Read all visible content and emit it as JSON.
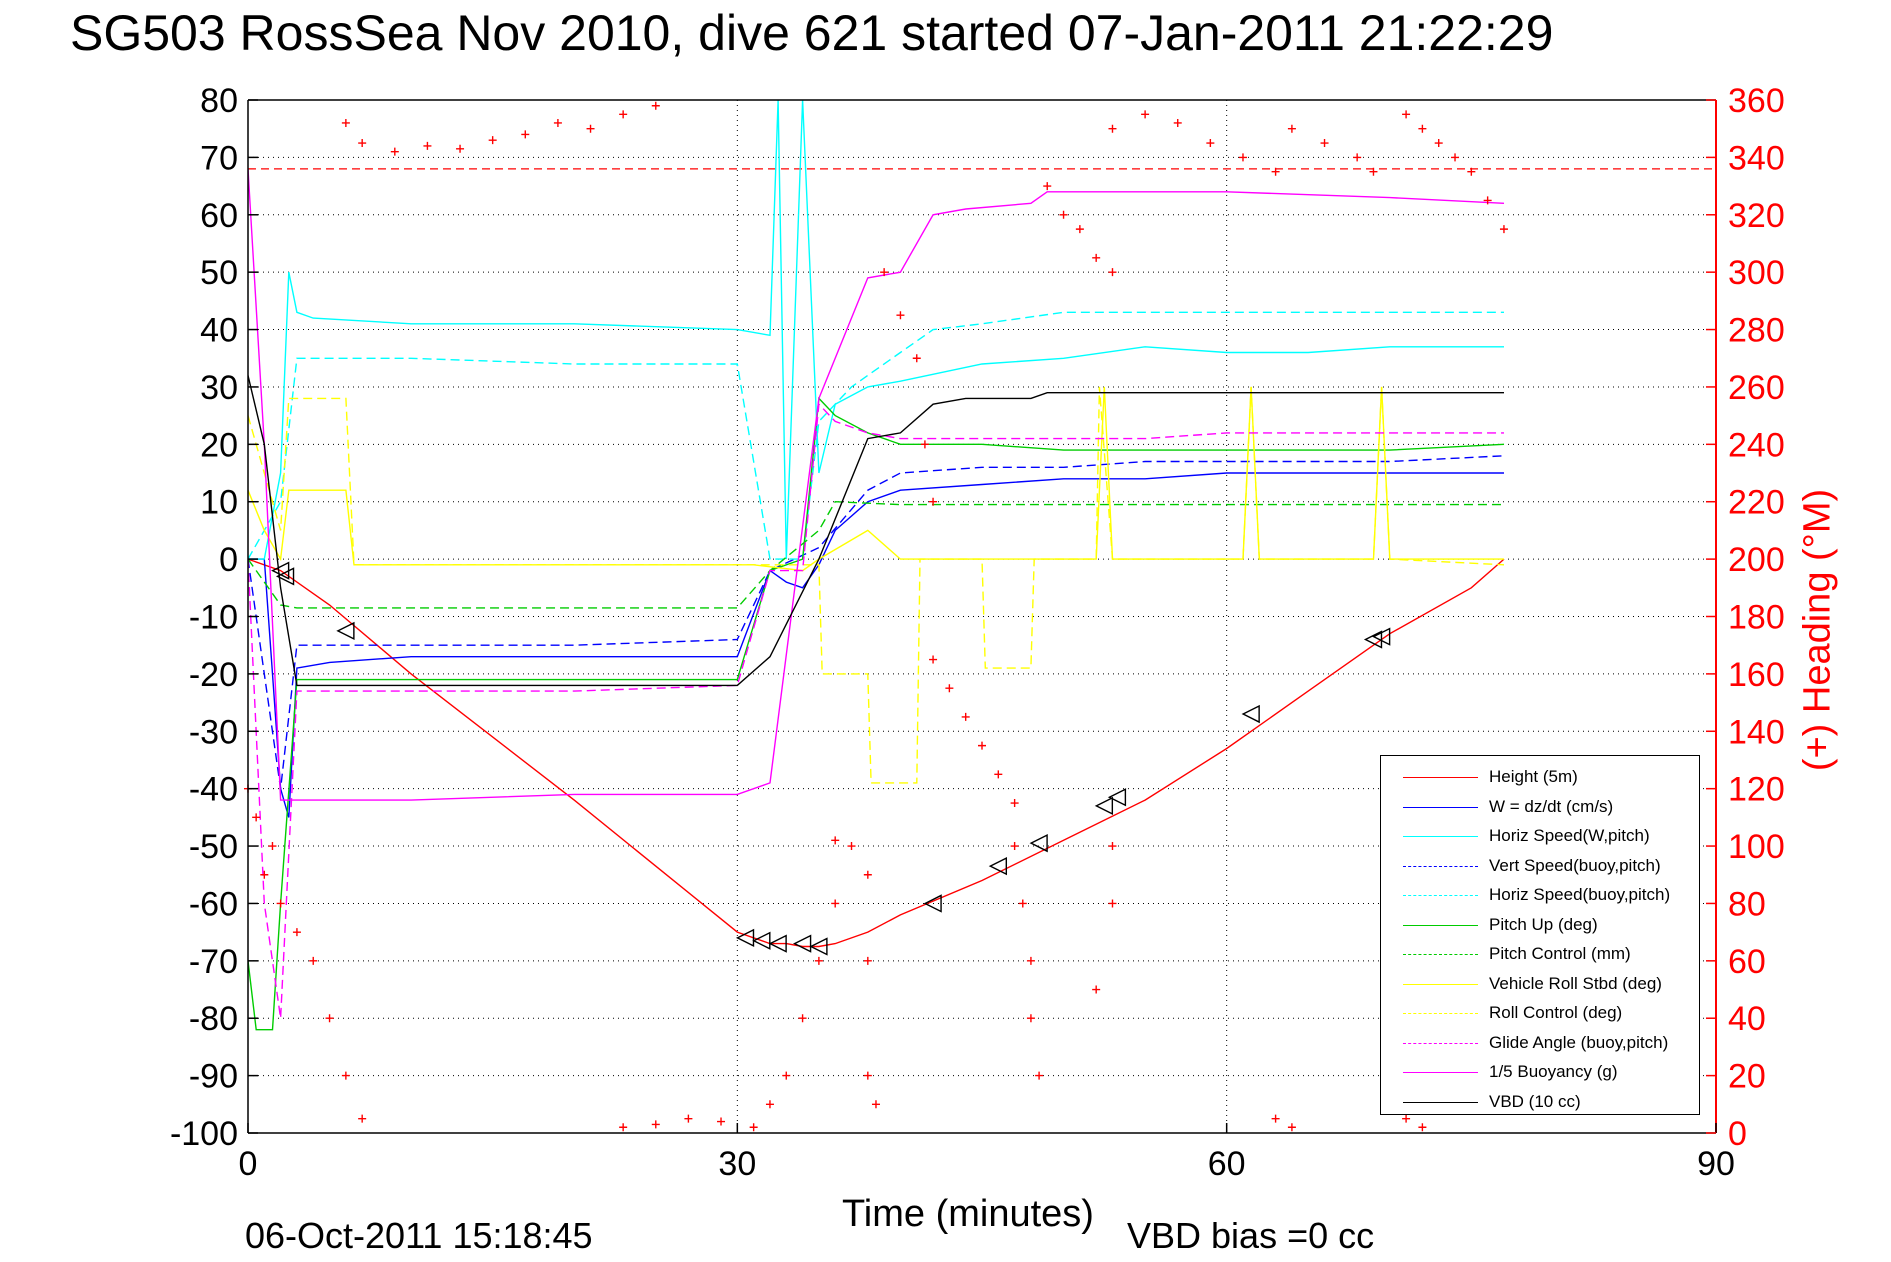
{
  "title": "SG503 RossSea Nov 2010, dive 621 started 07-Jan-2011 21:22:29",
  "footer": {
    "date": "06-Oct-2011 15:18:45",
    "bias": "VBD bias =0 cc"
  },
  "chart_data": {
    "type": "line",
    "xlabel": "Time (minutes)",
    "ylabel_right": "(+) Heading (°M)",
    "xlim": [
      0,
      90
    ],
    "ylim_left": [
      -100,
      80
    ],
    "ylim_right": [
      0,
      360
    ],
    "x_ticks": [
      "0",
      "30",
      "60",
      "90"
    ],
    "y_left_ticks": [
      "80",
      "70",
      "60",
      "50",
      "40",
      "30",
      "20",
      "10",
      "0",
      "-10",
      "-20",
      "-30",
      "-40",
      "-50",
      "-60",
      "-70",
      "-80",
      "-90",
      "-100"
    ],
    "y_right_ticks": [
      "360",
      "340",
      "320",
      "300",
      "280",
      "260",
      "240",
      "220",
      "200",
      "180",
      "160",
      "140",
      "120",
      "100",
      "80",
      "60",
      "40",
      "20",
      "0"
    ],
    "grid": true,
    "legend_position": "bottom-right",
    "series": [
      {
        "name": "Height (5m)",
        "color": "#ff0000",
        "style": "solid",
        "x": [
          0,
          2,
          5,
          10,
          20,
          30,
          32,
          33,
          34,
          35,
          36,
          37,
          38,
          40,
          45,
          50,
          55,
          60,
          65,
          70,
          75,
          77
        ],
        "y": [
          0,
          -2,
          -8,
          -20,
          -42,
          -65,
          -67,
          -67,
          -67.5,
          -67.5,
          -67,
          -66,
          -65,
          -62,
          -56,
          -49,
          -42,
          -33,
          -23,
          -13,
          -5,
          0
        ]
      },
      {
        "name": "W = dz/dt (cm/s)",
        "color": "#0000ff",
        "style": "solid",
        "x": [
          0,
          1,
          1.5,
          2,
          2.5,
          3,
          5,
          10,
          20,
          30,
          32,
          33,
          34,
          35,
          36,
          38,
          40,
          45,
          50,
          55,
          60,
          65,
          70,
          77
        ],
        "y": [
          0,
          0,
          -20,
          -40,
          -45,
          -19,
          -18,
          -17,
          -17,
          -17,
          -2,
          -4,
          -5,
          -1,
          5,
          10,
          12,
          13,
          14,
          14,
          15,
          15,
          15,
          15
        ]
      },
      {
        "name": "Horiz Speed(W,pitch)",
        "color": "#00ffff",
        "style": "solid",
        "x": [
          0,
          1,
          2,
          2.5,
          3,
          4,
          10,
          20,
          30,
          32,
          32.5,
          33,
          34,
          35,
          36,
          38,
          40,
          45,
          50,
          55,
          60,
          65,
          70,
          77
        ],
        "y": [
          0,
          0,
          15,
          50,
          43,
          42,
          41,
          41,
          40,
          39,
          80,
          0,
          80,
          15,
          27,
          30,
          31,
          34,
          35,
          37,
          36,
          36,
          37,
          37
        ]
      },
      {
        "name": "Vert Speed(buoy,pitch)",
        "color": "#0000ff",
        "style": "dashed",
        "x": [
          0,
          2,
          3,
          5,
          10,
          20,
          30,
          32,
          35,
          38,
          40,
          45,
          50,
          55,
          60,
          65,
          70,
          77
        ],
        "y": [
          0,
          -40,
          -15,
          -15,
          -15,
          -15,
          -14,
          -2,
          2,
          12,
          15,
          16,
          16,
          17,
          17,
          17,
          17,
          18
        ]
      },
      {
        "name": "Horiz Speed(buoy,pitch)",
        "color": "#00ffff",
        "style": "dashed",
        "x": [
          0,
          2,
          3,
          5,
          10,
          20,
          30,
          32,
          34,
          35,
          37,
          40,
          42,
          45,
          50,
          55,
          60,
          65,
          70,
          77
        ],
        "y": [
          0,
          10,
          35,
          35,
          35,
          34,
          34,
          0,
          0,
          24,
          30,
          36,
          40,
          41,
          43,
          43,
          43,
          43,
          43,
          43
        ]
      },
      {
        "name": "Pitch Up (deg)",
        "color": "#00cc00",
        "style": "solid",
        "x": [
          0,
          0.5,
          1.5,
          2,
          3,
          5,
          10,
          20,
          30,
          32,
          34,
          35,
          36,
          38,
          40,
          45,
          50,
          55,
          60,
          65,
          70,
          77
        ],
        "y": [
          -70,
          -82,
          -82,
          -60,
          -21,
          -21,
          -21,
          -21,
          -21,
          -2,
          0,
          28,
          25,
          22,
          20,
          20,
          19,
          19,
          19,
          19,
          19,
          20
        ]
      },
      {
        "name": "Pitch Control (mm)",
        "color": "#00cc00",
        "style": "dashed",
        "x": [
          0,
          2,
          3,
          30,
          32,
          35,
          36,
          40,
          77
        ],
        "y": [
          0,
          -8,
          -8.5,
          -8.5,
          -2,
          5,
          10,
          9.5,
          9.5
        ]
      },
      {
        "name": "Vehicle Roll Stbd (deg)",
        "color": "#ffff00",
        "style": "solid",
        "x": [
          0,
          1,
          2,
          2.5,
          3,
          6,
          6.5,
          30,
          31,
          34,
          35,
          38,
          40,
          50,
          52,
          52.5,
          53,
          61,
          61.5,
          62,
          69,
          69.5,
          70,
          77
        ],
        "y": [
          12,
          5,
          0,
          12,
          12,
          12,
          -1,
          -1,
          -1,
          -2,
          0,
          5,
          0,
          0,
          0,
          30,
          0,
          0,
          30,
          0,
          0,
          30,
          0,
          0
        ]
      },
      {
        "name": "Roll Control (deg)",
        "color": "#ffff00",
        "style": "dashed",
        "x": [
          0,
          2,
          2.5,
          6,
          6.5,
          30,
          31,
          35,
          35.2,
          38,
          38.2,
          41,
          41.2,
          45,
          45.2,
          48,
          48.2,
          50,
          52,
          52.2,
          53,
          61,
          61.5,
          62,
          69,
          69.5,
          70,
          77
        ],
        "y": [
          25,
          5,
          28,
          28,
          -1,
          -1,
          -1,
          -1,
          -20,
          -20,
          -39,
          -39,
          0,
          0,
          -19,
          -19,
          0,
          0,
          0,
          30,
          0,
          0,
          30,
          0,
          0,
          30,
          0,
          -1
        ]
      },
      {
        "name": "Glide Angle (buoy,pitch)",
        "color": "#ff00ff",
        "style": "dashed",
        "x": [
          0,
          1,
          2,
          3,
          5,
          10,
          20,
          30,
          32,
          34,
          35,
          36,
          38,
          40,
          45,
          50,
          55,
          60,
          65,
          70,
          77
        ],
        "y": [
          0,
          -60,
          -80,
          -23,
          -23,
          -23,
          -23,
          -22,
          -2,
          -2,
          27,
          24,
          22,
          21,
          21,
          21,
          21,
          22,
          22,
          22,
          22
        ]
      },
      {
        "name": "1/5 Buoyancy (g)",
        "color": "#ff00ff",
        "style": "solid",
        "x": [
          0,
          1,
          2,
          3,
          10,
          20,
          30,
          32,
          35,
          38,
          40,
          42,
          44,
          48,
          49,
          55,
          60,
          70,
          77
        ],
        "y": [
          68,
          20,
          -42,
          -42,
          -42,
          -41,
          -41,
          -39,
          28,
          49,
          50,
          60,
          61,
          62,
          64,
          64,
          64,
          63,
          62
        ]
      },
      {
        "name": "VBD (10 cc)",
        "color": "#000000",
        "style": "solid",
        "x": [
          0,
          1,
          2,
          3,
          10,
          20,
          30,
          32,
          35,
          38,
          40,
          42,
          44,
          46,
          48,
          49,
          60,
          70,
          77
        ],
        "y": [
          32,
          20,
          -5,
          -22,
          -22,
          -22,
          -22,
          -17,
          0,
          21,
          22,
          27,
          28,
          28,
          28,
          29,
          29,
          29,
          29
        ]
      }
    ],
    "heading": {
      "name": "(+) Heading",
      "axis": "right",
      "marker": "+",
      "color": "#ff0000",
      "reference": 336,
      "points": [
        [
          0,
          120
        ],
        [
          0.5,
          110
        ],
        [
          1,
          90
        ],
        [
          1.5,
          100
        ],
        [
          2,
          80
        ],
        [
          3,
          70
        ],
        [
          4,
          60
        ],
        [
          5,
          40
        ],
        [
          6,
          20
        ],
        [
          7,
          5
        ],
        [
          6,
          352
        ],
        [
          7,
          345
        ],
        [
          9,
          342
        ],
        [
          11,
          344
        ],
        [
          13,
          343
        ],
        [
          15,
          346
        ],
        [
          17,
          348
        ],
        [
          19,
          352
        ],
        [
          21,
          350
        ],
        [
          23,
          355
        ],
        [
          25,
          358
        ],
        [
          23,
          2
        ],
        [
          25,
          3
        ],
        [
          27,
          5
        ],
        [
          29,
          4
        ],
        [
          31,
          2
        ],
        [
          32,
          10
        ],
        [
          33,
          20
        ],
        [
          34,
          40
        ],
        [
          35,
          60
        ],
        [
          36,
          80
        ],
        [
          37,
          100
        ],
        [
          36,
          102
        ],
        [
          38,
          90
        ],
        [
          38,
          60
        ],
        [
          38,
          20
        ],
        [
          38.5,
          10
        ],
        [
          39,
          300
        ],
        [
          40,
          285
        ],
        [
          41,
          270
        ],
        [
          41.5,
          240
        ],
        [
          42,
          220
        ],
        [
          42,
          165
        ],
        [
          43,
          155
        ],
        [
          44,
          145
        ],
        [
          45,
          135
        ],
        [
          46,
          125
        ],
        [
          47,
          115
        ],
        [
          47,
          100
        ],
        [
          47.5,
          80
        ],
        [
          48,
          60
        ],
        [
          48,
          40
        ],
        [
          48.5,
          20
        ],
        [
          49,
          330
        ],
        [
          50,
          320
        ],
        [
          51,
          315
        ],
        [
          52,
          305
        ],
        [
          53,
          300
        ],
        [
          52,
          50
        ],
        [
          53,
          80
        ],
        [
          53,
          100
        ],
        [
          53,
          350
        ],
        [
          55,
          355
        ],
        [
          57,
          352
        ],
        [
          59,
          345
        ],
        [
          61,
          340
        ],
        [
          63,
          335
        ],
        [
          63,
          5
        ],
        [
          64,
          2
        ],
        [
          64,
          350
        ],
        [
          66,
          345
        ],
        [
          68,
          340
        ],
        [
          69,
          335
        ],
        [
          71,
          5
        ],
        [
          72,
          2
        ],
        [
          71,
          355
        ],
        [
          72,
          350
        ],
        [
          73,
          345
        ],
        [
          74,
          340
        ],
        [
          75,
          335
        ],
        [
          76,
          325
        ],
        [
          77,
          315
        ]
      ]
    },
    "triangles": {
      "color": "#000000",
      "points": [
        [
          2,
          -2
        ],
        [
          2.3,
          -3
        ],
        [
          6,
          -12.5
        ],
        [
          30.5,
          -66
        ],
        [
          31.5,
          -66.5
        ],
        [
          32.5,
          -67
        ],
        [
          34,
          -67
        ],
        [
          35,
          -67.5
        ],
        [
          42,
          -60
        ],
        [
          46,
          -53.5
        ],
        [
          48.5,
          -49.5
        ],
        [
          52.5,
          -43
        ],
        [
          53.3,
          -41.5
        ],
        [
          61.5,
          -27
        ],
        [
          69,
          -14
        ],
        [
          69.5,
          -13.5
        ]
      ]
    }
  },
  "legend": {
    "items": [
      {
        "label": "Height (5m)",
        "color": "#ff0000",
        "style": "solid"
      },
      {
        "label": "W = dz/dt (cm/s)",
        "color": "#0000ff",
        "style": "solid"
      },
      {
        "label": "Horiz Speed(W,pitch)",
        "color": "#00ffff",
        "style": "solid"
      },
      {
        "label": "Vert Speed(buoy,pitch)",
        "color": "#0000ff",
        "style": "dashed"
      },
      {
        "label": "Horiz Speed(buoy,pitch)",
        "color": "#00ffff",
        "style": "dashed"
      },
      {
        "label": "Pitch Up (deg)",
        "color": "#00cc00",
        "style": "solid"
      },
      {
        "label": "Pitch Control (mm)",
        "color": "#00cc00",
        "style": "dashed"
      },
      {
        "label": "Vehicle Roll Stbd (deg)",
        "color": "#ffff00",
        "style": "solid"
      },
      {
        "label": "Roll Control (deg)",
        "color": "#ffff00",
        "style": "dashed"
      },
      {
        "label": "Glide Angle (buoy,pitch)",
        "color": "#ff00ff",
        "style": "dashed"
      },
      {
        "label": "1/5 Buoyancy (g)",
        "color": "#ff00ff",
        "style": "solid"
      },
      {
        "label": "VBD (10 cc)",
        "color": "#000000",
        "style": "solid"
      }
    ]
  }
}
